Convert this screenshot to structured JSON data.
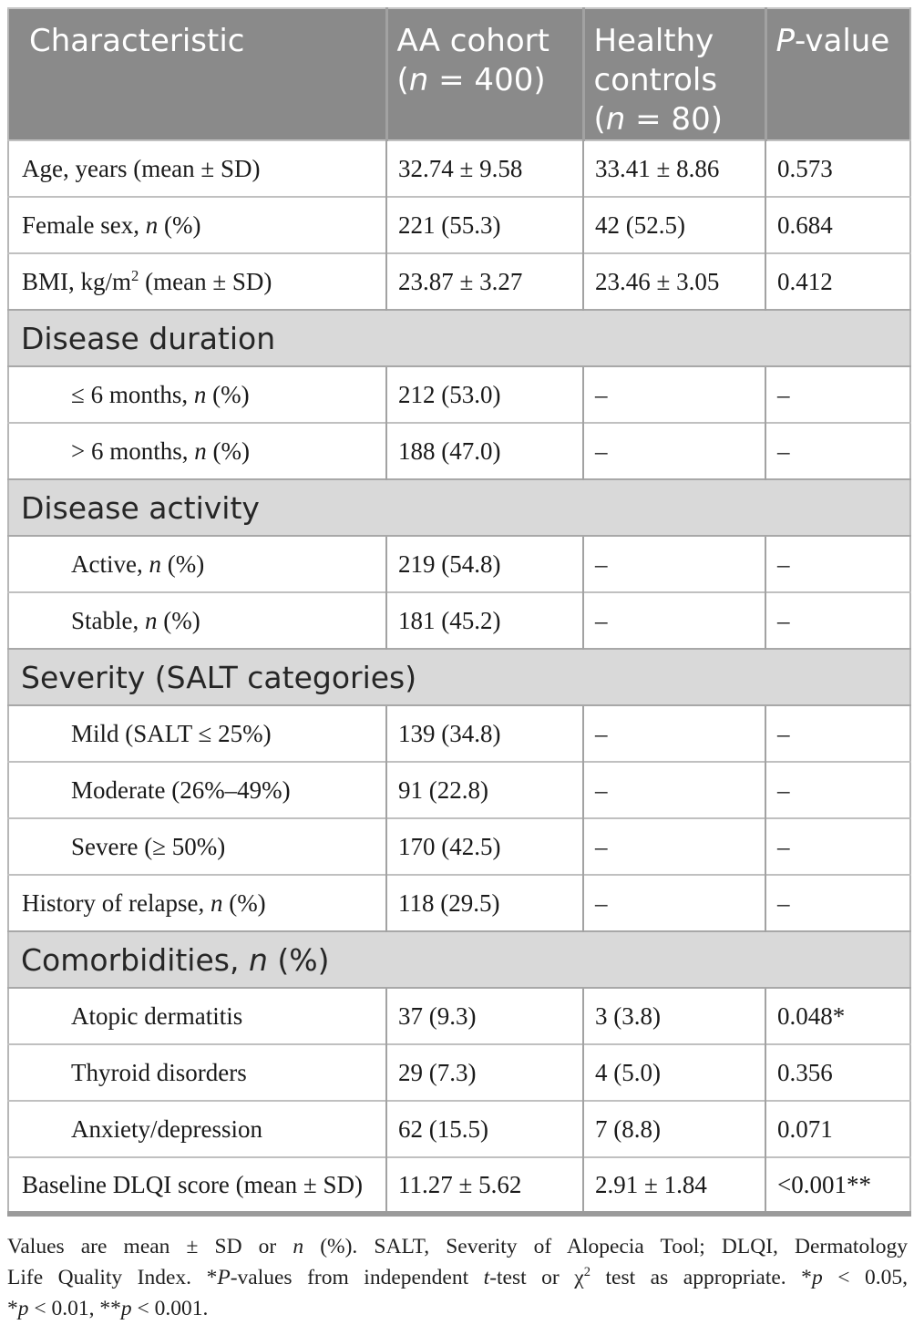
{
  "colors": {
    "header_bg": "#8a8a8a",
    "header_text": "#ffffff",
    "section_bg": "#d9d9d9",
    "body_bg": "#ffffff",
    "text": "#1a1a1a",
    "grid_line": "#a2a2a2",
    "row_line": "#c0c0c0",
    "bottom_border": "#9b9b9b"
  },
  "table": {
    "columns": [
      {
        "name": "characteristic",
        "label_html": "Characteristic"
      },
      {
        "name": "aa-cohort",
        "label_html": "AA cohort<br>(<i>n</i> = 400)"
      },
      {
        "name": "healthy-controls",
        "label_html": "Healthy controls (<i>n</i> = 80)"
      },
      {
        "name": "p-value",
        "label_html": "<i>P</i>-value"
      }
    ],
    "rows": [
      {
        "type": "data",
        "name": "age",
        "indent": false,
        "label_html": "Age, years (mean ± SD)",
        "aa_html": "32.74 ± 9.58",
        "hc_html": "33.41 ± 8.86",
        "p_html": "0.573"
      },
      {
        "type": "data",
        "name": "female-sex",
        "indent": false,
        "label_html": "Female sex, <i>n</i> (%)",
        "aa_html": "221 (55.3)",
        "hc_html": "42 (52.5)",
        "p_html": "0.684"
      },
      {
        "type": "data",
        "name": "bmi",
        "indent": false,
        "label_html": "BMI, kg/m<sup>2</sup> (mean ± SD)",
        "aa_html": "23.87 ± 3.27",
        "hc_html": "23.46 ± 3.05",
        "p_html": "0.412"
      },
      {
        "type": "section",
        "name": "disease-duration",
        "label_html": "Disease duration"
      },
      {
        "type": "data",
        "name": "duration-le-6-months",
        "indent": true,
        "label_html": "≤ 6 months, <i>n</i> (%)",
        "aa_html": "212 (53.0)",
        "hc_html": "–",
        "p_html": "–"
      },
      {
        "type": "data",
        "name": "duration-gt-6-months",
        "indent": true,
        "label_html": "&gt; 6 months, <i>n</i> (%)",
        "aa_html": "188 (47.0)",
        "hc_html": "–",
        "p_html": "–"
      },
      {
        "type": "section",
        "name": "disease-activity",
        "label_html": "Disease activity"
      },
      {
        "type": "data",
        "name": "active",
        "indent": true,
        "label_html": "Active, <i>n</i> (%)",
        "aa_html": "219 (54.8)",
        "hc_html": "–",
        "p_html": "–"
      },
      {
        "type": "data",
        "name": "stable",
        "indent": true,
        "label_html": "Stable, <i>n</i> (%)",
        "aa_html": "181 (45.2)",
        "hc_html": "–",
        "p_html": "–"
      },
      {
        "type": "section",
        "name": "severity-salt-categories",
        "label_html": "Severity (SALT categories)"
      },
      {
        "type": "data",
        "name": "mild",
        "indent": true,
        "label_html": "Mild (SALT ≤ 25%)",
        "aa_html": "139 (34.8)",
        "hc_html": "–",
        "p_html": "–"
      },
      {
        "type": "data",
        "name": "moderate",
        "indent": true,
        "label_html": "Moderate (26%–49%)",
        "aa_html": "91 (22.8)",
        "hc_html": "–",
        "p_html": "–"
      },
      {
        "type": "data",
        "name": "severe",
        "indent": true,
        "label_html": "Severe (≥ 50%)",
        "aa_html": "170 (42.5)",
        "hc_html": "–",
        "p_html": "–"
      },
      {
        "type": "data",
        "name": "history-of-relapse",
        "indent": false,
        "label_html": "History of relapse, <i>n</i> (%)",
        "aa_html": "118 (29.5)",
        "hc_html": "–",
        "p_html": "–"
      },
      {
        "type": "section",
        "name": "comorbidities",
        "label_html": "Comorbidities, <i>n</i> (%)"
      },
      {
        "type": "data",
        "name": "atopic-dermatitis",
        "indent": true,
        "label_html": "Atopic dermatitis",
        "aa_html": "37 (9.3)",
        "hc_html": "3 (3.8)",
        "p_html": "0.048*"
      },
      {
        "type": "data",
        "name": "thyroid-disorders",
        "indent": true,
        "label_html": "Thyroid disorders",
        "aa_html": "29 (7.3)",
        "hc_html": "4 (5.0)",
        "p_html": "0.356"
      },
      {
        "type": "data",
        "name": "anxiety-depression",
        "indent": true,
        "label_html": "Anxiety/depression",
        "aa_html": "62 (15.5)",
        "hc_html": "7 (8.8)",
        "p_html": "0.071"
      },
      {
        "type": "data",
        "name": "baseline-dlqi",
        "indent": false,
        "label_html": "Baseline DLQI score (mean ± SD)",
        "aa_html": "11.27 ± 5.62",
        "hc_html": "2.91 ± 1.84",
        "p_html": "&lt;0.001**"
      }
    ]
  },
  "footnote": {
    "lines_html": [
      "Values are mean ± SD or <i>n</i> (%). SALT, Severity of Alopecia Tool; DLQI, Dermatology",
      "Life Quality Index. *<i>P</i>-values from independent <i>t</i>-test or χ<sup>2</sup> test as appropriate. *<i>p</i> &lt; 0.05,",
      "*<i>p</i> &lt; 0.01, **<i>p</i> &lt; 0.001."
    ]
  }
}
